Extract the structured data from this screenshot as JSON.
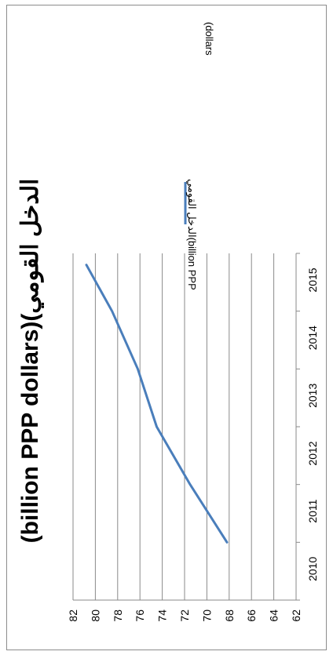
{
  "chart_data": {
    "type": "line",
    "title": "(billion PPP dollars)(الدخل القومي",
    "xlabel": "",
    "ylabel": "",
    "x": [
      2010,
      2011,
      2012,
      2013,
      2014,
      2015
    ],
    "series": [
      {
        "name": "(الدخل القومي (billion PPP dollars",
        "x": [
          2010,
          2011,
          2012,
          2013,
          2014,
          2014.8
        ],
        "values": [
          68.2,
          71.5,
          74.5,
          76.2,
          78.5,
          80.8
        ],
        "color": "#4a7ebb"
      }
    ],
    "ylim": [
      62,
      82
    ],
    "yticks": [
      62,
      64,
      66,
      68,
      70,
      72,
      74,
      76,
      78,
      80,
      82
    ],
    "xticks": [
      2010,
      2011,
      2012,
      2013,
      2014,
      2015
    ],
    "grid": true,
    "legend": "top-right",
    "orientation": "rotated-90-clockwise"
  },
  "legend": {
    "line1": "الدخل القومي(billion PPP",
    "line2": "(dollars"
  }
}
